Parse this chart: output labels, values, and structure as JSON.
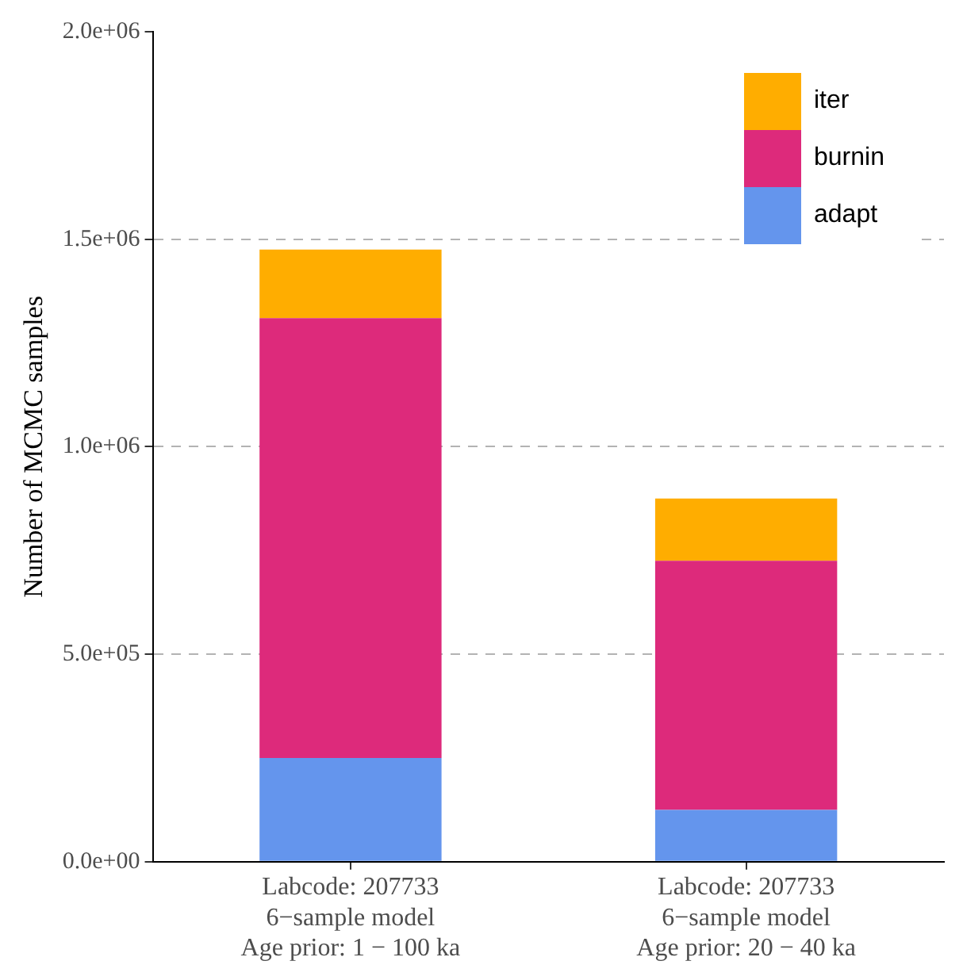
{
  "chart_data": {
    "type": "bar",
    "ylabel": "Number of MCMC samples",
    "categories": [
      "Labcode: 207733\n6−sample model\nAge prior: 1 − 100 ka",
      "Labcode: 207733\n6−sample model\nAge prior: 20 − 40 ka"
    ],
    "stacked": true,
    "series": [
      {
        "name": "adapt",
        "color": "#6495ed",
        "values": [
          250000,
          125000
        ]
      },
      {
        "name": "burnin",
        "color": "#dd2a7b",
        "values": [
          1060000,
          600000
        ]
      },
      {
        "name": "iter",
        "color": "#ffad00",
        "values": [
          165000,
          150000
        ]
      }
    ],
    "ylim": [
      0,
      2000000
    ],
    "yticks": [
      {
        "value": 0,
        "label": "0.0e+00"
      },
      {
        "value": 500000,
        "label": "5.0e+05"
      },
      {
        "value": 1000000,
        "label": "1.0e+06"
      },
      {
        "value": 1500000,
        "label": "1.5e+06"
      },
      {
        "value": 2000000,
        "label": "2.0e+06"
      }
    ],
    "grid": "y",
    "legend": "top right"
  }
}
